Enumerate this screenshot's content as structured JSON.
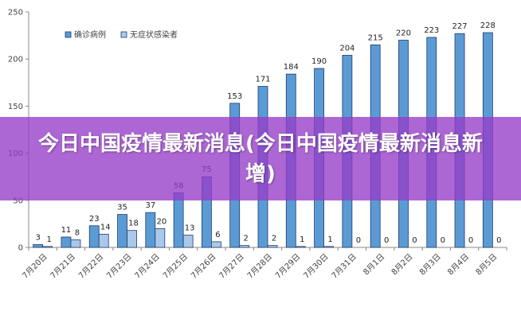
{
  "banner": {
    "headline": "今日中国疫情最新消息(今日中国疫情最新消息新增)"
  },
  "colors": {
    "confirmed": "#5b9bd5",
    "confirmed_stroke": "#1f3b66",
    "asymptomatic": "#a9c8ea",
    "asymptomatic_stroke": "#1f3b66",
    "banner": "#963cc8"
  },
  "chart_data": {
    "type": "bar",
    "title": "",
    "xlabel": "",
    "ylabel": "",
    "ylim": [
      0,
      250
    ],
    "yticks": [
      0,
      50,
      100,
      150,
      200,
      250
    ],
    "grid": false,
    "legend_position": "top-left",
    "categories": [
      "7月20日",
      "7月21日",
      "7月22日",
      "7月23日",
      "7月24日",
      "7月25日",
      "7月26日",
      "7月27日",
      "7月28日",
      "7月29日",
      "7月30日",
      "7月31日",
      "8月1日",
      "8月2日",
      "8月3日",
      "8月4日",
      "8月5日"
    ],
    "series": [
      {
        "name": "确诊病例",
        "values": [
          3,
          11,
          23,
          35,
          37,
          58,
          75,
          153,
          171,
          184,
          190,
          204,
          215,
          220,
          223,
          227,
          228
        ]
      },
      {
        "name": "无症状感染者",
        "values": [
          1,
          8,
          14,
          18,
          20,
          13,
          6,
          2,
          2,
          1,
          1,
          0,
          0,
          0,
          0,
          0,
          0
        ]
      }
    ]
  }
}
